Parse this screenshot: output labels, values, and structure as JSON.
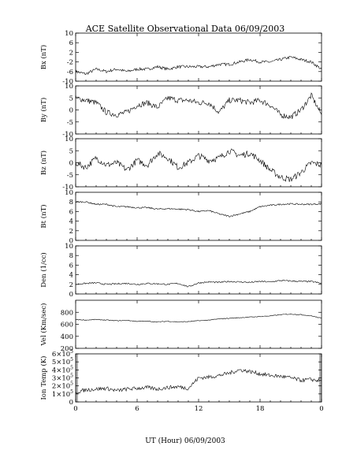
{
  "chart_data": {
    "type": "line",
    "title": "ACE Satellite Observational Data   06/09/2003",
    "xlabel": "UT (Hour)  06/09/2003",
    "x_ticks": [
      "0",
      "6",
      "12",
      "18",
      "0"
    ],
    "xlim": [
      0,
      24
    ],
    "panels": [
      {
        "id": "bx",
        "ylabel": "Bx (nT)",
        "ylim": [
          -10,
          10
        ],
        "yticks": [
          "10",
          "6",
          "2",
          "-2",
          "-6",
          "-10"
        ],
        "ytick_values": [
          10,
          6,
          2,
          -2,
          -6,
          -10
        ],
        "x": [
          0,
          1,
          2,
          3,
          4,
          5,
          6,
          7,
          8,
          9,
          10,
          11,
          12,
          13,
          14,
          15,
          16,
          17,
          18,
          19,
          20,
          21,
          22,
          23,
          24
        ],
        "values": [
          -6,
          -7,
          -5,
          -6,
          -5,
          -6,
          -5,
          -5,
          -4,
          -5,
          -4,
          -4,
          -4,
          -4,
          -3,
          -3,
          -2,
          -1,
          -2,
          -2,
          -1,
          0,
          -1,
          -2,
          -5
        ]
      },
      {
        "id": "by",
        "ylabel": "By (nT)",
        "ylim": [
          -10,
          10
        ],
        "yticks": [
          "10",
          "5",
          "0",
          "-5",
          "-10"
        ],
        "ytick_values": [
          10,
          5,
          0,
          -5,
          -10
        ],
        "x": [
          0,
          1,
          2,
          3,
          4,
          5,
          6,
          7,
          8,
          9,
          10,
          11,
          12,
          13,
          14,
          15,
          16,
          17,
          18,
          19,
          20,
          21,
          22,
          23,
          24
        ],
        "values": [
          5,
          4,
          3,
          -1,
          -2,
          -1,
          2,
          3,
          1,
          5,
          4,
          4,
          3,
          3,
          -1,
          4,
          4,
          3,
          4,
          2,
          -2,
          -3,
          0,
          6,
          -2
        ]
      },
      {
        "id": "bz",
        "ylabel": "Bz (nT)",
        "ylim": [
          -10,
          10
        ],
        "yticks": [
          "10",
          "5",
          "0",
          "-5",
          "-10"
        ],
        "ytick_values": [
          10,
          5,
          0,
          -5,
          -10
        ],
        "x": [
          0,
          1,
          2,
          3,
          4,
          5,
          6,
          7,
          8,
          9,
          10,
          11,
          12,
          13,
          14,
          15,
          16,
          17,
          18,
          19,
          20,
          21,
          22,
          23,
          24
        ],
        "values": [
          0,
          -2,
          2,
          -1,
          0,
          -3,
          1,
          -1,
          4,
          2,
          -2,
          0,
          3,
          1,
          2,
          5,
          3,
          4,
          1,
          -3,
          -6,
          -7,
          -4,
          0,
          -1
        ]
      },
      {
        "id": "bt",
        "ylabel": "Bt (nT)",
        "ylim": [
          0,
          10
        ],
        "yticks": [
          "10",
          "8",
          "6",
          "4",
          "2",
          "0"
        ],
        "ytick_values": [
          10,
          8,
          6,
          4,
          2,
          0
        ],
        "x": [
          0,
          1,
          2,
          3,
          4,
          5,
          6,
          7,
          8,
          9,
          10,
          11,
          12,
          13,
          14,
          15,
          16,
          17,
          18,
          19,
          20,
          21,
          22,
          23,
          24
        ],
        "values": [
          8,
          8,
          7.5,
          7.5,
          7,
          7,
          6.8,
          6.8,
          6.5,
          6.6,
          6.5,
          6.4,
          6,
          6.2,
          5.5,
          5,
          5.5,
          6,
          7,
          7.3,
          7.5,
          7.6,
          7.5,
          7.5,
          7.6
        ]
      },
      {
        "id": "den",
        "ylabel": "Den (1/cc)",
        "ylim": [
          0,
          10
        ],
        "yticks": [
          "10",
          "8",
          "6",
          "4",
          "2",
          "0"
        ],
        "ytick_values": [
          10,
          8,
          6,
          4,
          2,
          0
        ],
        "x": [
          0,
          1,
          2,
          3,
          4,
          5,
          6,
          7,
          8,
          9,
          10,
          11,
          12,
          13,
          14,
          15,
          16,
          17,
          18,
          19,
          20,
          21,
          22,
          23,
          24
        ],
        "values": [
          2,
          2.2,
          2.3,
          2,
          2.1,
          2.2,
          2,
          2.2,
          2.1,
          2,
          2.2,
          1.5,
          2.3,
          2.5,
          2.4,
          2.6,
          2.5,
          2.4,
          2.6,
          2.5,
          2.8,
          2.7,
          2.6,
          2.6,
          2.2
        ]
      },
      {
        "id": "vel",
        "ylabel": "Vel (Km/sec)",
        "ylim": [
          200,
          1000
        ],
        "yticks": [
          "800",
          "600",
          "400",
          "200"
        ],
        "ytick_values": [
          800,
          600,
          400,
          200
        ],
        "x": [
          0,
          1,
          2,
          3,
          4,
          5,
          6,
          7,
          8,
          9,
          10,
          11,
          12,
          13,
          14,
          15,
          16,
          17,
          18,
          19,
          20,
          21,
          22,
          23,
          24
        ],
        "values": [
          680,
          670,
          680,
          670,
          660,
          665,
          650,
          650,
          640,
          650,
          640,
          645,
          660,
          670,
          690,
          700,
          710,
          720,
          730,
          740,
          760,
          770,
          760,
          740,
          700
        ]
      },
      {
        "id": "ion_temp",
        "ylabel": "Ion Temp (K)",
        "ylim": [
          0,
          600000
        ],
        "yticks": [
          {
            "base": "6×10",
            "exp": "5",
            "v": 600000
          },
          {
            "base": "5×10",
            "exp": "5",
            "v": 500000
          },
          {
            "base": "4×10",
            "exp": "5",
            "v": 400000
          },
          {
            "base": "3×10",
            "exp": "5",
            "v": 300000
          },
          {
            "base": "2×10",
            "exp": "5",
            "v": 200000
          },
          {
            "base": "1×10",
            "exp": "5",
            "v": 100000
          },
          {
            "base": "0",
            "exp": "",
            "v": 0
          }
        ],
        "x": [
          0,
          1,
          2,
          3,
          4,
          5,
          6,
          7,
          8,
          9,
          10,
          11,
          12,
          13,
          14,
          15,
          16,
          17,
          18,
          19,
          20,
          21,
          22,
          23,
          24
        ],
        "values": [
          120000,
          150000,
          160000,
          170000,
          140000,
          160000,
          170000,
          180000,
          160000,
          180000,
          190000,
          170000,
          300000,
          310000,
          330000,
          360000,
          400000,
          380000,
          350000,
          330000,
          320000,
          300000,
          270000,
          280000,
          260000
        ]
      }
    ]
  }
}
